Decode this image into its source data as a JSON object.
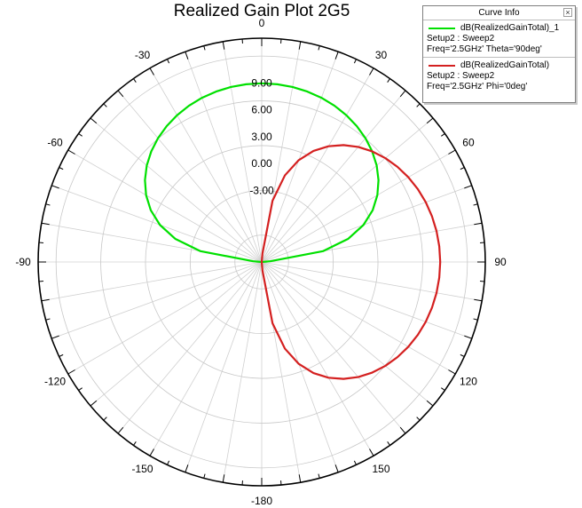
{
  "chart_data": {
    "type": "polar-line",
    "title": "Realized Gain Plot 2G5",
    "radial_axis": {
      "min": -11,
      "max": 14,
      "ring_labels": [
        "-3.00",
        "0.00",
        "3.00",
        "6.00",
        "9.00"
      ],
      "ring_values": [
        -3,
        0,
        3,
        6,
        9
      ],
      "grid_ring_values": [
        -8,
        -3,
        2,
        7,
        12,
        14
      ]
    },
    "angular_axis": {
      "zero_at": "top",
      "direction": "clockwise",
      "tick_labels": [
        "0",
        "30",
        "60",
        "90",
        "120",
        "150",
        "-180",
        "-150",
        "-120",
        "-90",
        "-60",
        "-30"
      ],
      "tick_angles": [
        0,
        30,
        60,
        90,
        120,
        150,
        180,
        -150,
        -120,
        -90,
        -60,
        -30
      ],
      "grid_spoke_step_deg": 10
    },
    "series": [
      {
        "name": "dB(RealizedGainTotal)_1",
        "setup": "Setup2 : Sweep2",
        "condition": "Freq='2.5GHz' Theta='90deg'",
        "color": "#00e000",
        "angles": [
          0,
          5,
          10,
          15,
          20,
          25,
          30,
          35,
          40,
          45,
          50,
          55,
          60,
          65,
          70,
          75,
          80,
          85,
          90,
          95,
          100,
          105,
          110,
          115,
          120,
          125,
          130,
          135,
          140,
          145,
          150,
          155,
          160,
          165,
          170,
          175,
          180,
          185,
          190,
          195,
          200,
          205,
          210,
          215,
          220,
          225,
          230,
          235,
          240,
          245,
          250,
          255,
          260,
          265,
          270,
          275,
          280,
          285,
          290,
          295,
          300,
          305,
          310,
          315,
          320,
          325,
          330,
          335,
          340,
          345,
          350,
          355
        ],
        "values": [
          8.96,
          8.93,
          8.85,
          8.71,
          8.52,
          8.26,
          7.93,
          7.53,
          7.05,
          6.47,
          5.78,
          4.94,
          3.93,
          2.69,
          1.11,
          -0.98,
          -4.05,
          -10.05,
          -11,
          -11,
          -11,
          -11,
          -11,
          -11,
          -11,
          -11,
          -11,
          -11,
          -11,
          -11,
          -11,
          -11,
          -11,
          -11,
          -11,
          -11,
          -11,
          -11,
          -11,
          -11,
          -11,
          -11,
          -11,
          -11,
          -11,
          -11,
          -11,
          -11,
          -11,
          -11,
          -11,
          -11,
          -11,
          -11,
          -11,
          -10.05,
          -4.05,
          -0.98,
          1.11,
          2.69,
          3.93,
          4.94,
          5.78,
          6.47,
          7.05,
          7.53,
          7.93,
          8.26,
          8.52,
          8.71,
          8.85,
          8.93
        ]
      },
      {
        "name": "dB(RealizedGainTotal)",
        "setup": "Setup2 : Sweep2",
        "condition": "Freq='2.5GHz' Phi='0deg'",
        "color": "#d42020",
        "angles": [
          0,
          5,
          10,
          15,
          20,
          25,
          30,
          35,
          40,
          45,
          50,
          55,
          60,
          65,
          70,
          75,
          80,
          85,
          90,
          95,
          100,
          105,
          110,
          115,
          120,
          125,
          130,
          135,
          140,
          145,
          150,
          155,
          160,
          165,
          170,
          175,
          180,
          185,
          190,
          195,
          200,
          205,
          210,
          215,
          220,
          225,
          230,
          235,
          240,
          245,
          250,
          255,
          260,
          265,
          270,
          275,
          280,
          285,
          290,
          295,
          300,
          305,
          310,
          315,
          320,
          325,
          330,
          335,
          340,
          345,
          350,
          355
        ],
        "values": [
          -11,
          -10.05,
          -4.05,
          -0.98,
          1.11,
          2.69,
          3.93,
          4.94,
          5.78,
          6.47,
          7.05,
          7.53,
          7.93,
          8.26,
          8.52,
          8.71,
          8.85,
          8.93,
          8.96,
          8.93,
          8.85,
          8.71,
          8.52,
          8.26,
          7.93,
          7.53,
          7.05,
          6.47,
          5.78,
          4.94,
          3.93,
          2.69,
          1.11,
          -0.98,
          -4.05,
          -10.05,
          -11,
          -11,
          -11,
          -11,
          -11,
          -11,
          -11,
          -11,
          -11,
          -11,
          -11,
          -11,
          -11,
          -11,
          -11,
          -11,
          -11,
          -11,
          -11,
          -11,
          -11,
          -11,
          -11,
          -11,
          -11,
          -11,
          -11,
          -11,
          -11,
          -11,
          -11,
          -11,
          -11,
          -11,
          -11,
          -11
        ]
      }
    ],
    "legend": {
      "title": "Curve Info",
      "placement": "top-right"
    }
  }
}
